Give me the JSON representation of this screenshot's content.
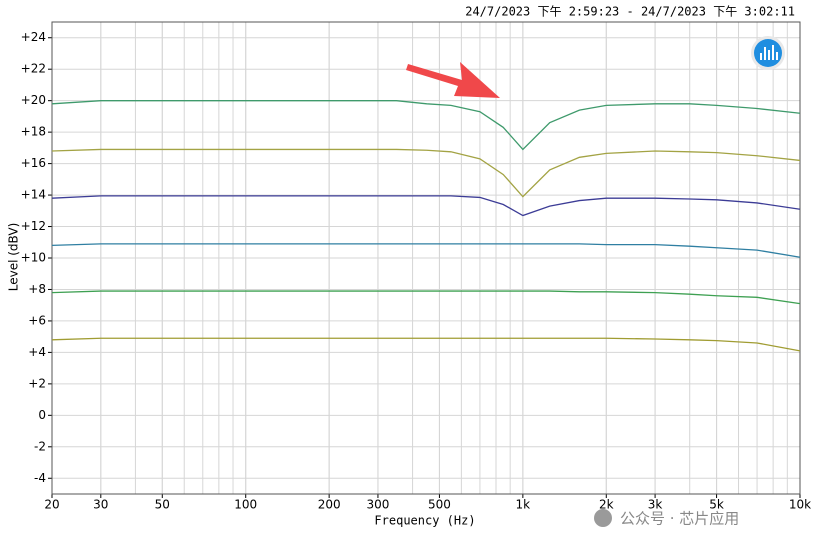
{
  "chart_data": {
    "type": "line",
    "title": "24/7/2023 下午 2:59:23 - 24/7/2023 下午 3:02:11",
    "xlabel": "Frequency (Hz)",
    "ylabel": "Level (dBV)",
    "watermark": "公众号 · 芯片应用",
    "xscale": "log",
    "grid": true,
    "xlim": [
      20,
      10000
    ],
    "ylim": [
      -5,
      25
    ],
    "xticks": [
      20,
      30,
      50,
      100,
      200,
      300,
      500,
      {
        "value": 1000,
        "label": "1k"
      },
      {
        "value": 2000,
        "label": "2k"
      },
      {
        "value": 3000,
        "label": "3k"
      },
      {
        "value": 5000,
        "label": "5k"
      },
      {
        "value": 10000,
        "label": "10k"
      }
    ],
    "yticks": [
      -4,
      -2,
      0,
      {
        "value": 2,
        "label": "+2"
      },
      {
        "value": 4,
        "label": "+4"
      },
      {
        "value": 6,
        "label": "+6"
      },
      {
        "value": 8,
        "label": "+8"
      },
      {
        "value": 10,
        "label": "+10"
      },
      {
        "value": 12,
        "label": "+12"
      },
      {
        "value": 14,
        "label": "+14"
      },
      {
        "value": 16,
        "label": "+16"
      },
      {
        "value": 18,
        "label": "+18"
      },
      {
        "value": 20,
        "label": "+20"
      },
      {
        "value": 22,
        "label": "+22"
      },
      {
        "value": 24,
        "label": "+24"
      }
    ],
    "x": [
      20,
      30,
      50,
      100,
      200,
      350,
      450,
      550,
      700,
      850,
      1000,
      1250,
      1600,
      2000,
      3000,
      4000,
      5000,
      7000,
      10000
    ],
    "series": [
      {
        "color": "#3f9a6c",
        "values": [
          19.8,
          20,
          20,
          20,
          20,
          20,
          19.8,
          19.7,
          19.3,
          18.3,
          16.9,
          18.6,
          19.4,
          19.7,
          19.8,
          19.8,
          19.7,
          19.5,
          19.2
        ]
      },
      {
        "color": "#a3a344",
        "values": [
          16.8,
          16.9,
          16.9,
          16.9,
          16.9,
          16.9,
          16.85,
          16.75,
          16.3,
          15.3,
          13.9,
          15.6,
          16.4,
          16.65,
          16.8,
          16.75,
          16.7,
          16.5,
          16.2
        ]
      },
      {
        "color": "#3c3c96",
        "values": [
          13.8,
          13.95,
          13.95,
          13.95,
          13.95,
          13.95,
          13.95,
          13.95,
          13.85,
          13.4,
          12.7,
          13.3,
          13.65,
          13.8,
          13.8,
          13.75,
          13.7,
          13.5,
          13.1
        ]
      },
      {
        "color": "#2f7fa2",
        "values": [
          10.8,
          10.9,
          10.9,
          10.9,
          10.9,
          10.9,
          10.9,
          10.9,
          10.9,
          10.9,
          10.9,
          10.9,
          10.9,
          10.85,
          10.85,
          10.75,
          10.65,
          10.5,
          10.05
        ]
      },
      {
        "color": "#3ea052",
        "values": [
          7.8,
          7.9,
          7.9,
          7.9,
          7.9,
          7.9,
          7.9,
          7.9,
          7.9,
          7.9,
          7.9,
          7.9,
          7.85,
          7.85,
          7.8,
          7.7,
          7.6,
          7.5,
          7.1
        ]
      },
      {
        "color": "#a09c32",
        "values": [
          4.8,
          4.9,
          4.9,
          4.9,
          4.9,
          4.9,
          4.9,
          4.9,
          4.9,
          4.9,
          4.9,
          4.9,
          4.9,
          4.9,
          4.85,
          4.8,
          4.75,
          4.6,
          4.1
        ]
      }
    ]
  }
}
